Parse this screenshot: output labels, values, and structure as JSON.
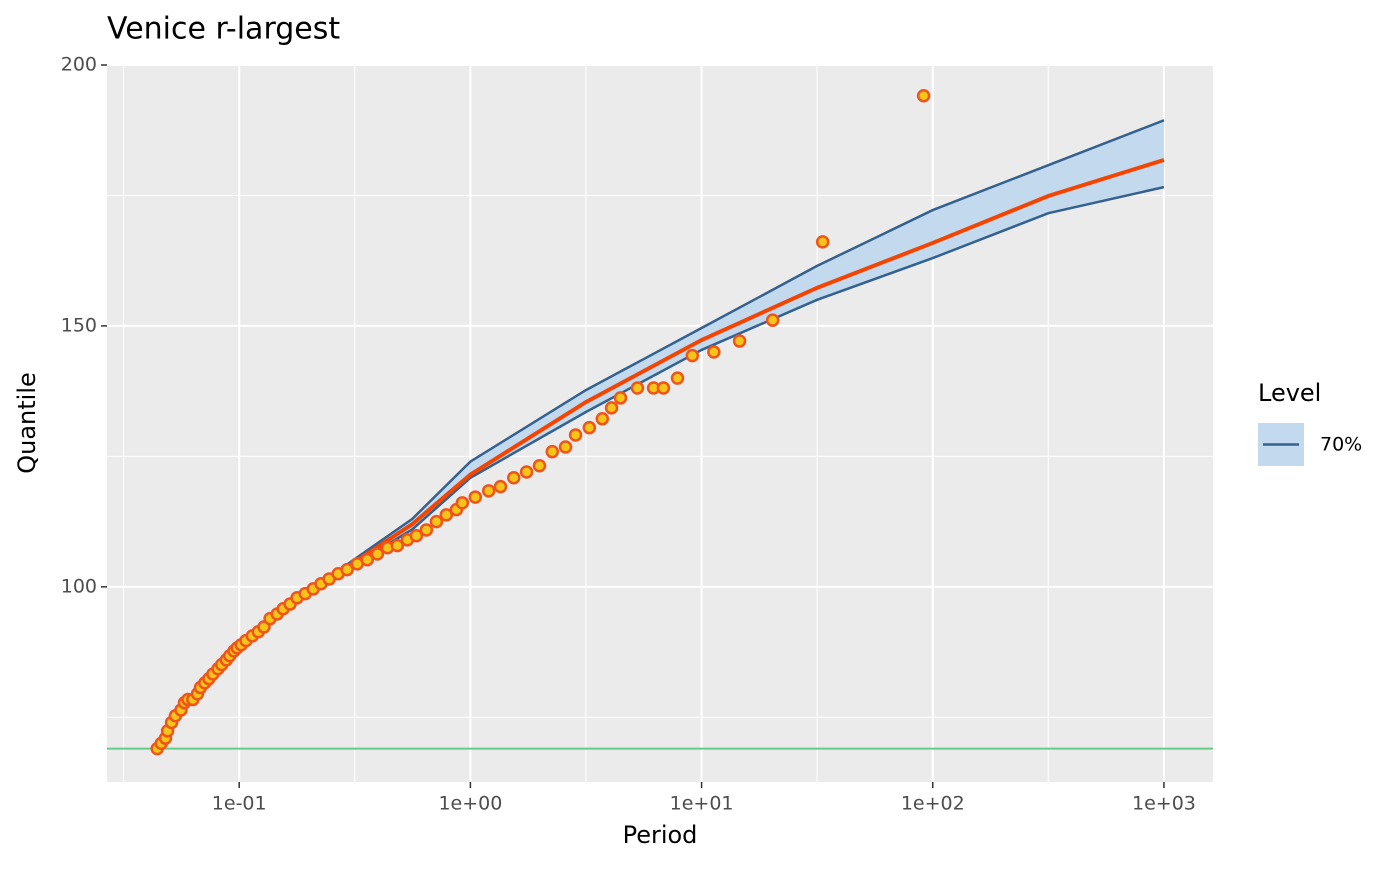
{
  "chart_data": {
    "type": "return-level",
    "title": "Venice r-largest",
    "x_label": "Period",
    "y_label": "Quantile",
    "legend_title": "Level",
    "x_log": true,
    "grid": true,
    "xlim": [
      0.0268,
      1630
    ],
    "ylim": [
      62.6,
      200
    ],
    "xticks": [
      {
        "value": 0.1,
        "label": "1e-01"
      },
      {
        "value": 1,
        "label": "1e+00"
      },
      {
        "value": 10,
        "label": "1e+01"
      },
      {
        "value": 100,
        "label": "1e+02"
      },
      {
        "value": 1000,
        "label": "1e+03"
      }
    ],
    "xminor": [
      0.0316,
      0.316,
      3.16,
      31.6,
      316
    ],
    "yticks": [
      100,
      150,
      200
    ],
    "yminor": [
      75,
      125,
      175
    ],
    "threshold": 69,
    "threshold_color": "#66cc8a",
    "x": [
      0.27,
      0.56,
      1,
      3.16,
      10,
      31.6,
      100,
      316,
      1000
    ],
    "fit": {
      "color": "#f54400",
      "values": [
        102.8,
        112,
        121.5,
        135.4,
        147.3,
        157.3,
        165.9,
        174.9,
        181.8
      ]
    },
    "band": {
      "name": "70%",
      "line_color": "#35618f",
      "fill": "#c3d9ee",
      "upper": [
        103.2,
        113,
        124,
        137.7,
        149.6,
        161.5,
        172.2,
        180.8,
        189.4
      ],
      "lower": [
        102.5,
        111,
        120.9,
        133.5,
        145.4,
        155,
        163,
        171.6,
        176.6
      ]
    },
    "points": {
      "fill": "#f5c518",
      "stroke": "#f0541b",
      "x": [
        0.0442,
        0.046,
        0.048,
        0.049,
        0.051,
        0.053,
        0.056,
        0.058,
        0.06,
        0.063,
        0.066,
        0.068,
        0.071,
        0.074,
        0.077,
        0.081,
        0.084,
        0.088,
        0.091,
        0.095,
        0.098,
        0.102,
        0.107,
        0.114,
        0.121,
        0.128,
        0.136,
        0.146,
        0.155,
        0.166,
        0.178,
        0.193,
        0.209,
        0.226,
        0.245,
        0.268,
        0.293,
        0.324,
        0.358,
        0.396,
        0.438,
        0.483,
        0.534,
        0.584,
        0.645,
        0.713,
        0.787,
        0.87,
        0.923,
        1.05,
        1.2,
        1.35,
        1.54,
        1.75,
        1.99,
        2.26,
        2.58,
        2.85,
        3.27,
        3.72,
        4.08,
        4.46,
        5.28,
        6.2,
        6.84,
        7.87,
        9.12,
        11.3,
        14.6,
        20.3,
        33.4,
        91.3
      ],
      "values": [
        69,
        70,
        71,
        72.4,
        74,
        75.3,
        76.4,
        77.8,
        78.4,
        78.4,
        79.5,
        80.7,
        81.6,
        82.4,
        83.3,
        84.3,
        85.1,
        86,
        86.8,
        87.7,
        88.3,
        88.9,
        89.7,
        90.6,
        91.4,
        92.3,
        93.9,
        94.8,
        95.8,
        96.7,
        97.9,
        98.7,
        99.6,
        100.6,
        101.5,
        102.5,
        103.3,
        104.4,
        105.2,
        106.3,
        107.5,
        107.9,
        109,
        109.8,
        110.9,
        112.5,
        113.8,
        114.8,
        116.1,
        117.2,
        118.4,
        119.2,
        120.9,
        122,
        123.2,
        125.9,
        126.8,
        129.1,
        130.5,
        132.2,
        134.3,
        136.2,
        138.1,
        138.1,
        138.1,
        140,
        144.3,
        145,
        147.1,
        151.1,
        166.1,
        194.1
      ]
    }
  }
}
